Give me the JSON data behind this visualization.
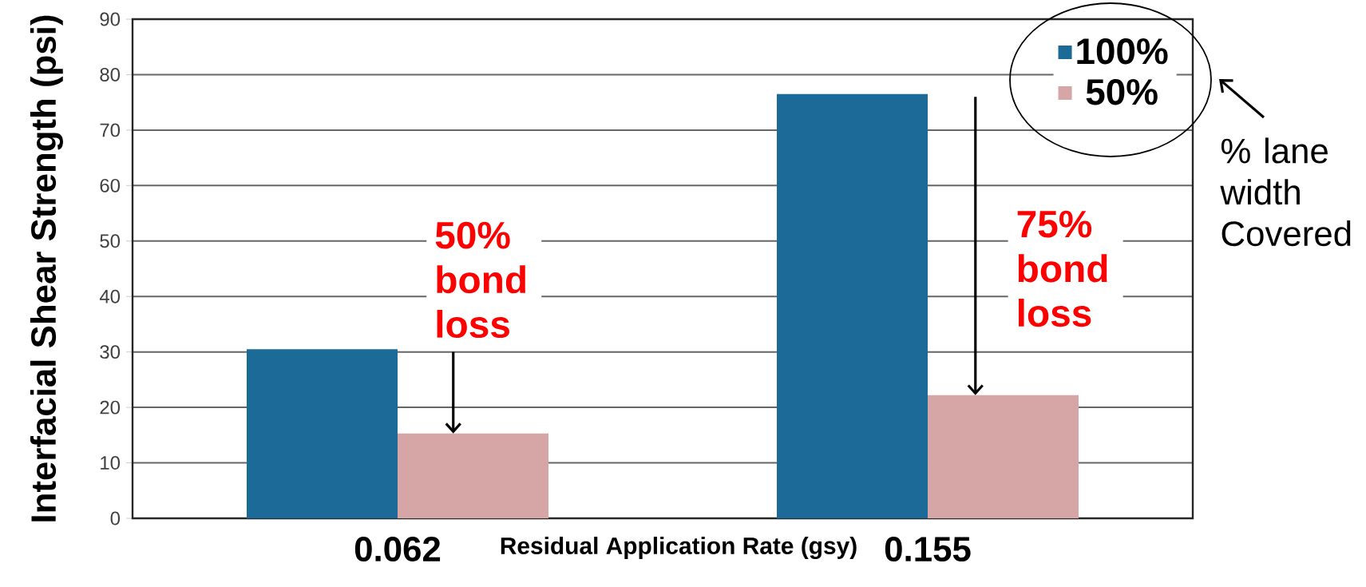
{
  "chart_data": {
    "type": "bar",
    "xlabel": "Residual Application Rate (gsy)",
    "ylabel": "Interfacial Shear Strength (psi)",
    "categories": [
      "0.062",
      "0.155"
    ],
    "series": [
      {
        "name": "100%",
        "color": "#1b6a98",
        "values": [
          30.5,
          76.5
        ]
      },
      {
        "name": "50%",
        "color": "#d6a5a5",
        "values": [
          15.3,
          22.2
        ]
      }
    ],
    "ylim": [
      0,
      90
    ],
    "yticks": [
      0,
      10,
      20,
      30,
      40,
      50,
      60,
      70,
      80,
      90
    ],
    "grid": "y",
    "legend": "top right",
    "annotations": [
      {
        "text": "50% bond loss",
        "x": "0.062",
        "y": 15.3
      },
      {
        "text": "75% bond loss",
        "x": "0.155",
        "y": 22.2
      },
      "% lane width Covered"
    ]
  }
}
